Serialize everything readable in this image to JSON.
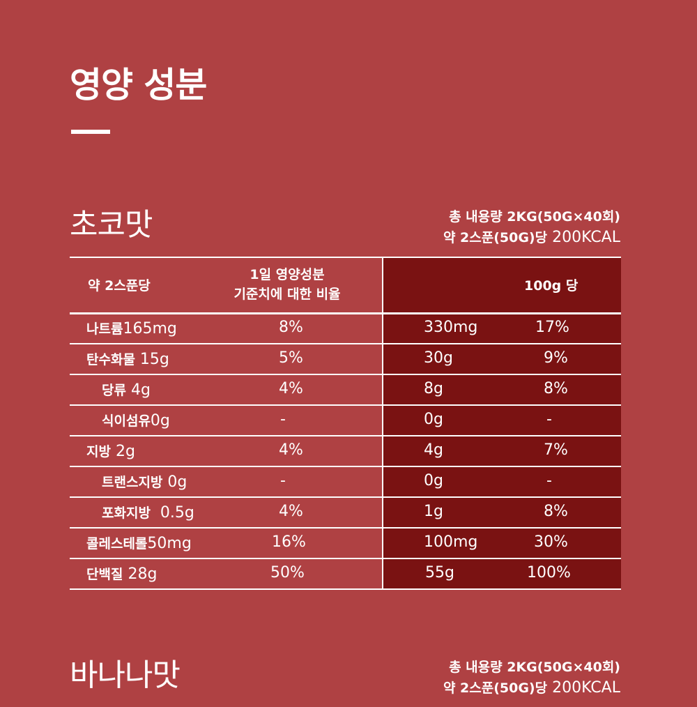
{
  "title": "영양 성분",
  "sections": [
    {
      "name": "초코맛",
      "serving": {
        "line1": "총 내용량 2KG(50G×40회)",
        "line2_bold": "약 2스푼(50G)당",
        "line2_normal": " 200KCAL"
      }
    },
    {
      "name": "바나나맛",
      "serving": {
        "line1": "총 내용량 2KG(50G×40회)",
        "line2_bold": "약 2스푼(50G)당",
        "line2_normal": " 200KCAL"
      }
    }
  ],
  "table": {
    "headers": {
      "col1": "약 2스푼당",
      "col2_line1": "1일 영양성분",
      "col2_line2": "기준치에 대한 비율",
      "col3": "100g 당"
    },
    "rows": [
      {
        "label": "나트륨",
        "amount": "165mg",
        "pct": "8%",
        "per100": "330mg",
        "pct100": "17%"
      },
      {
        "label": "탄수화물",
        "amount": " 15g",
        "pct": "5%",
        "per100": "30g",
        "pct100": "9%"
      },
      {
        "label": "당류",
        "amount": " 4g",
        "pct": "4%",
        "per100": "8g",
        "pct100": "8%"
      },
      {
        "label": "식이섬유",
        "amount": "0g",
        "pct": "-",
        "per100": "0g",
        "pct100": "-"
      },
      {
        "label": "지방",
        "amount": " 2g",
        "pct": "4%",
        "per100": "4g",
        "pct100": "7%"
      },
      {
        "label": "트랜스지방",
        "amount": " 0g",
        "pct": "-",
        "per100": "0g",
        "pct100": "-"
      },
      {
        "label": "포화지방",
        "amount": "  0.5g",
        "pct": "4%",
        "per100": "1g",
        "pct100": "8%"
      },
      {
        "label": "콜레스테롤",
        "amount": "50mg",
        "pct": "16%",
        "per100": "100mg",
        "pct100": "30%"
      },
      {
        "label": "단백질",
        "amount": " 28g",
        "pct": "50%",
        "per100": "55g",
        "pct100": "100%"
      }
    ]
  }
}
